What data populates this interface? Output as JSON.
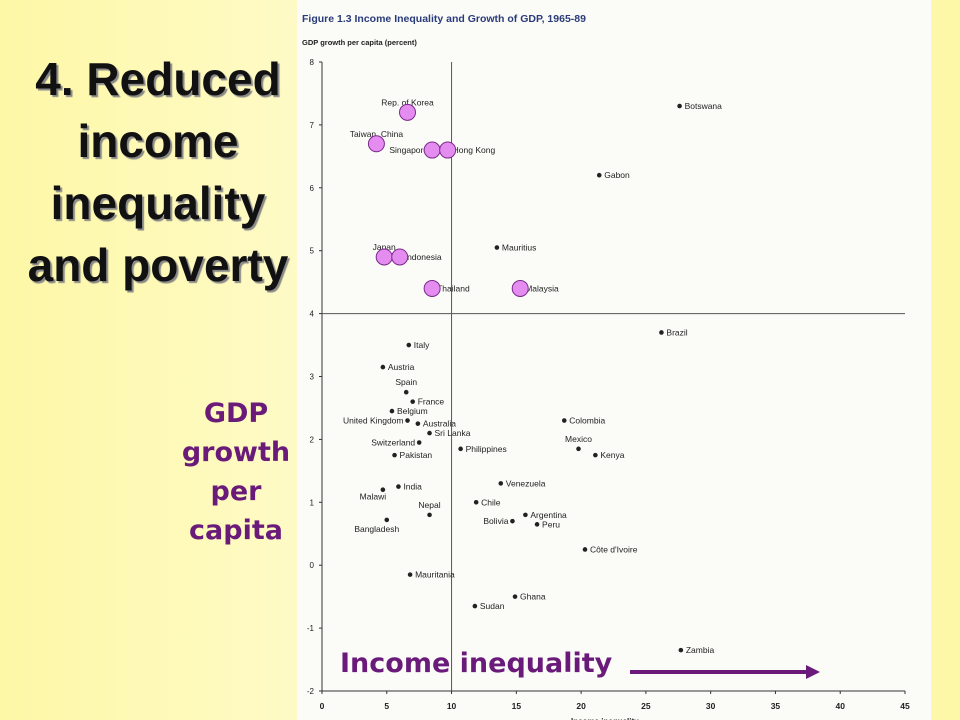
{
  "slide": {
    "title": "4. Reduced income inequality and poverty",
    "title_lines": [
      "4. Reduced",
      "income",
      "inequality",
      "and poverty"
    ],
    "side_label_lines": [
      "GDP",
      "growth",
      "per",
      "capita"
    ],
    "bottom_label": "Income inequality",
    "accent_color": "#6a1b7a",
    "highlight_color": "#e58cf0"
  },
  "chart_data": {
    "type": "scatter",
    "figure_label": "Figure 1.3",
    "title": "Income Inequality and Growth of GDP, 1965-89",
    "ylabel": "GDP growth per capita (percent)",
    "xlabel": "Income inequality",
    "xlim": [
      0,
      45
    ],
    "ylim": [
      -2,
      8
    ],
    "xticks": [
      0,
      5,
      10,
      15,
      20,
      25,
      30,
      35,
      40,
      45
    ],
    "yticks": [
      -2,
      -1,
      0,
      1,
      2,
      3,
      4,
      5,
      6,
      7,
      8
    ],
    "reference_lines": {
      "x": 10,
      "y": 4
    },
    "grid": false,
    "highlighted": [
      "Rep. of Korea",
      "Taiwan, China",
      "Singapore",
      "Hong Kong",
      "Japan",
      "Indonesia",
      "Thailand",
      "Malaysia"
    ],
    "points": [
      {
        "label": "Rep. of Korea",
        "x": 6.6,
        "y": 7.2,
        "anchor": "above"
      },
      {
        "label": "Botswana",
        "x": 27.6,
        "y": 7.3,
        "anchor": "right"
      },
      {
        "label": "Taiwan, China",
        "x": 4.2,
        "y": 6.7,
        "anchor": "above"
      },
      {
        "label": "Singapore",
        "x": 8.5,
        "y": 6.6,
        "anchor": "left"
      },
      {
        "label": "Hong Kong",
        "x": 9.7,
        "y": 6.6,
        "anchor": "right"
      },
      {
        "label": "Gabon",
        "x": 21.4,
        "y": 6.2,
        "anchor": "right"
      },
      {
        "label": "Japan",
        "x": 4.8,
        "y": 4.9,
        "anchor": "above"
      },
      {
        "label": "Indonesia",
        "x": 6.0,
        "y": 4.9,
        "anchor": "right"
      },
      {
        "label": "Mauritius",
        "x": 13.5,
        "y": 5.05,
        "anchor": "right"
      },
      {
        "label": "Thailand",
        "x": 8.5,
        "y": 4.4,
        "anchor": "right"
      },
      {
        "label": "Malaysia",
        "x": 15.3,
        "y": 4.4,
        "anchor": "right"
      },
      {
        "label": "Brazil",
        "x": 26.2,
        "y": 3.7,
        "anchor": "right"
      },
      {
        "label": "Italy",
        "x": 6.7,
        "y": 3.5,
        "anchor": "right"
      },
      {
        "label": "Austria",
        "x": 4.7,
        "y": 3.15,
        "anchor": "right"
      },
      {
        "label": "Spain",
        "x": 6.5,
        "y": 2.75,
        "anchor": "above"
      },
      {
        "label": "France",
        "x": 7.0,
        "y": 2.6,
        "anchor": "right"
      },
      {
        "label": "Belgium",
        "x": 5.4,
        "y": 2.45,
        "anchor": "right"
      },
      {
        "label": "United Kingdom",
        "x": 6.6,
        "y": 2.3,
        "anchor": "left"
      },
      {
        "label": "Australia",
        "x": 7.4,
        "y": 2.25,
        "anchor": "right"
      },
      {
        "label": "Sri Lanka",
        "x": 8.3,
        "y": 2.1,
        "anchor": "right"
      },
      {
        "label": "Colombia",
        "x": 18.7,
        "y": 2.3,
        "anchor": "right"
      },
      {
        "label": "Switzerland",
        "x": 7.5,
        "y": 1.95,
        "anchor": "left"
      },
      {
        "label": "Philippines",
        "x": 10.7,
        "y": 1.85,
        "anchor": "right"
      },
      {
        "label": "Mexico",
        "x": 19.8,
        "y": 1.85,
        "anchor": "above"
      },
      {
        "label": "Pakistan",
        "x": 5.6,
        "y": 1.75,
        "anchor": "right"
      },
      {
        "label": "Kenya",
        "x": 21.1,
        "y": 1.75,
        "anchor": "right"
      },
      {
        "label": "Venezuela",
        "x": 13.8,
        "y": 1.3,
        "anchor": "right"
      },
      {
        "label": "India",
        "x": 5.9,
        "y": 1.25,
        "anchor": "right"
      },
      {
        "label": "Malawi",
        "x": 4.7,
        "y": 1.2,
        "anchor": "below-left"
      },
      {
        "label": "Chile",
        "x": 11.9,
        "y": 1.0,
        "anchor": "right"
      },
      {
        "label": "Nepal",
        "x": 8.3,
        "y": 0.8,
        "anchor": "above"
      },
      {
        "label": "Argentina",
        "x": 15.7,
        "y": 0.8,
        "anchor": "right"
      },
      {
        "label": "Bangladesh",
        "x": 5.0,
        "y": 0.72,
        "anchor": "below"
      },
      {
        "label": "Bolivia",
        "x": 14.7,
        "y": 0.7,
        "anchor": "left"
      },
      {
        "label": "Peru",
        "x": 16.6,
        "y": 0.65,
        "anchor": "right"
      },
      {
        "label": "Côte d'Ivoire",
        "x": 20.3,
        "y": 0.25,
        "anchor": "right"
      },
      {
        "label": "Mauritania",
        "x": 6.8,
        "y": -0.15,
        "anchor": "right"
      },
      {
        "label": "Ghana",
        "x": 14.9,
        "y": -0.5,
        "anchor": "right"
      },
      {
        "label": "Sudan",
        "x": 11.8,
        "y": -0.65,
        "anchor": "right"
      },
      {
        "label": "Zambia",
        "x": 27.7,
        "y": -1.35,
        "anchor": "right"
      }
    ]
  }
}
